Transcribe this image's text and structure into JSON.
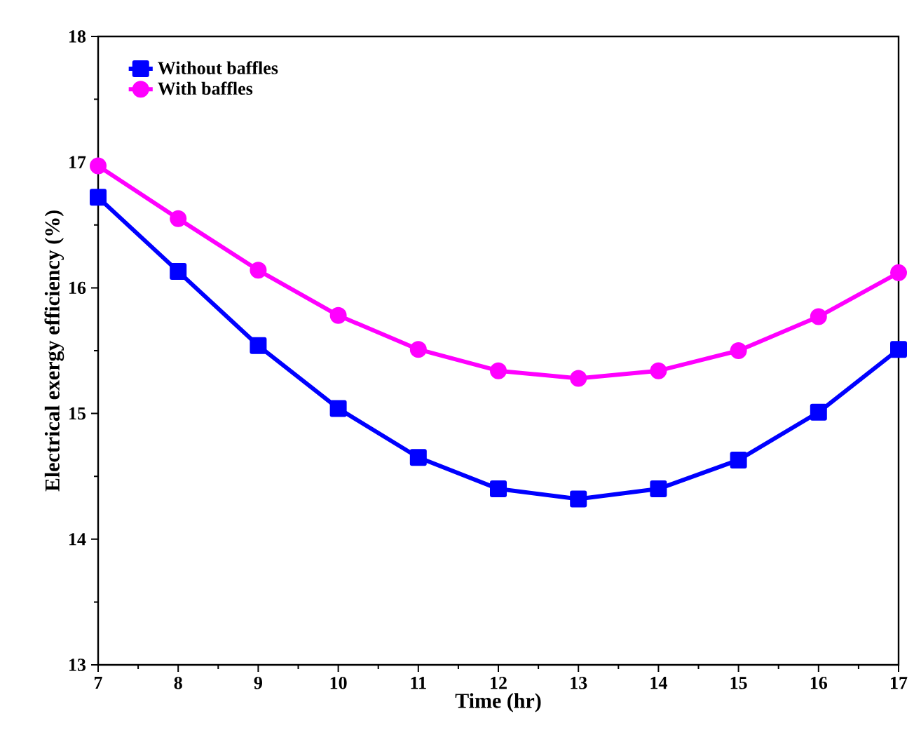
{
  "chart_data": {
    "type": "line",
    "xlabel": "Time (hr)",
    "ylabel": "Electrical exergy efficiency (%)",
    "x": [
      7,
      8,
      9,
      10,
      11,
      12,
      13,
      14,
      15,
      16,
      17
    ],
    "series": [
      {
        "name": "Without baffles",
        "color": "#0000ff",
        "marker": "square",
        "values": [
          16.72,
          16.13,
          15.54,
          15.04,
          14.65,
          14.4,
          14.32,
          14.4,
          14.63,
          15.01,
          15.51
        ]
      },
      {
        "name": "With baffles",
        "color": "#ff00ff",
        "marker": "circle",
        "values": [
          16.97,
          16.55,
          16.14,
          15.78,
          15.51,
          15.34,
          15.28,
          15.34,
          15.5,
          15.77,
          16.12
        ]
      }
    ],
    "xlim": [
      7,
      17
    ],
    "ylim": [
      13,
      18
    ],
    "xticks": [
      7,
      8,
      9,
      10,
      11,
      12,
      13,
      14,
      15,
      16,
      17
    ],
    "yticks": [
      13,
      14,
      15,
      16,
      17,
      18
    ],
    "legend": "top left",
    "grid": false,
    "line_style": "solid"
  }
}
